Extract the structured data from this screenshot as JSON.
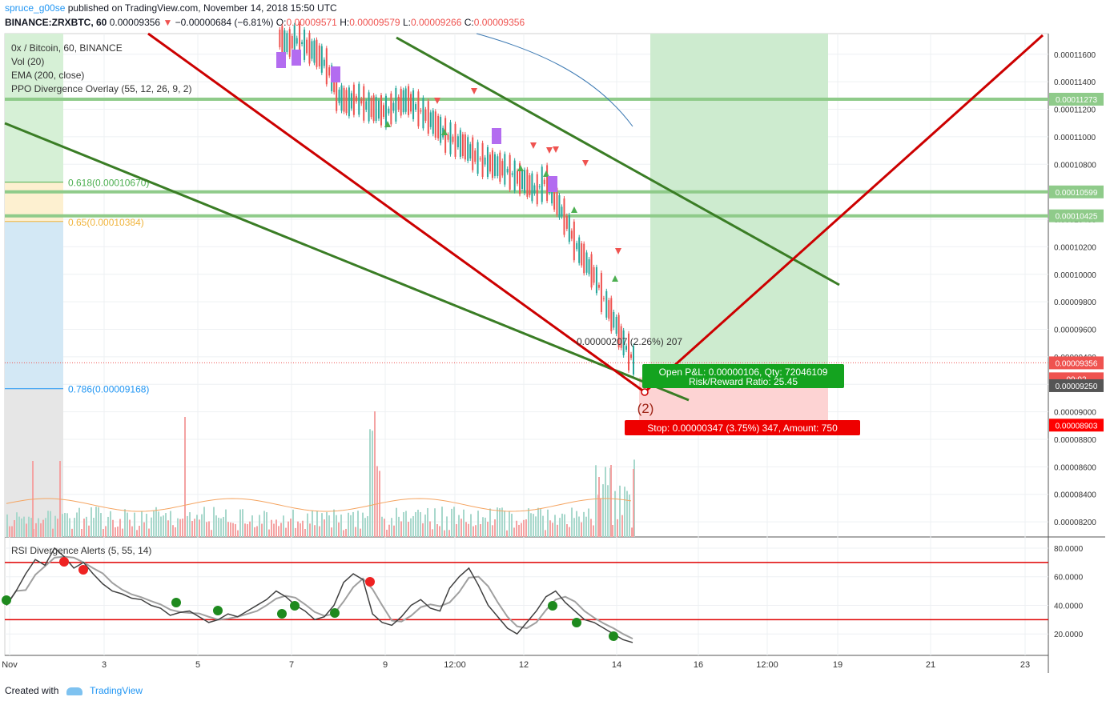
{
  "header": {
    "user": "spruce_g00se",
    "published": "published on TradingView.com, November 14, 2018 15:50 UTC",
    "symbol": "BINANCE:ZRXBTC, 60",
    "last": "0.00009356",
    "arrow": "▼",
    "change": "−0.00000684 (−6.81%)",
    "o_label": "O:",
    "o": "0.00009571",
    "h_label": "H:",
    "h": "0.00009579",
    "l_label": "L:",
    "l": "0.00009266",
    "c_label": "C:",
    "c": "0.00009356"
  },
  "legend": {
    "title": "0x / Bitcoin, 60, BINANCE",
    "vol": "Vol (20)",
    "ema": "EMA (200, close)",
    "ppo": "PPO Divergence Overlay (55, 12, 26, 9, 2)"
  },
  "rsi_title": "RSI Divergence Alerts (5, 55, 14)",
  "footer": {
    "created": "Created with",
    "brand": "TradingView"
  },
  "colors": {
    "up": "#26a69a",
    "down": "#ef5350",
    "long_target": "#cdebcf",
    "long_stop": "#fdd3d3",
    "trend_green": "#3a7d25",
    "trend_red": "#cc0000",
    "hline": "#8fcb8a"
  },
  "chart_data": {
    "type": "candlestick",
    "price_axis": {
      "ticks": [
        "0.00011600",
        "0.00011400",
        "0.00011200",
        "0.00011000",
        "0.00010800",
        "0.00010600",
        "0.00010400",
        "0.00010200",
        "0.00010000",
        "0.00009800",
        "0.00009600",
        "0.00009400",
        "0.00009200",
        "0.00009000",
        "0.00008800",
        "0.00008600",
        "0.00008400",
        "0.00008200"
      ],
      "range": [
        8.09e-05,
        0.0001175
      ]
    },
    "time_axis": {
      "ticks": [
        "Nov",
        "3",
        "5",
        "7",
        "9",
        "12:00",
        "12",
        "14",
        "16",
        "12:00",
        "19",
        "21",
        "23"
      ]
    },
    "price_labels": [
      {
        "value": "0.00011273",
        "price": 0.00011273,
        "color": "#8fcb8a"
      },
      {
        "value": "0.00010599",
        "price": 0.00010599,
        "color": "#8fcb8a"
      },
      {
        "value": "0.00010425",
        "price": 0.00010425,
        "color": "#8fcb8a"
      },
      {
        "value": "0.00009356",
        "price": 9.356e-05,
        "color": "#ef5350"
      },
      {
        "value": "09:02",
        "price": 9.24e-05,
        "color": "#ef5350"
      },
      {
        "value": "0.00009250",
        "price": 9.19e-05,
        "color": "#555555"
      },
      {
        "value": "0.00008903",
        "price": 8.903e-05,
        "color": "#ff0000"
      }
    ],
    "fib_levels": [
      {
        "label": "0.618(0.00010670)",
        "price": 0.0001067,
        "color": "#4caf50"
      },
      {
        "label": "0.65(0.00010384)",
        "price": 0.00010384,
        "color": "#f0b43c"
      },
      {
        "label": "0.786(0.00009168)",
        "price": 9.168e-05,
        "color": "#2196f3"
      }
    ],
    "horizontal_levels": [
      0.00011273,
      0.00010599,
      0.00010425
    ],
    "price_series": [
      0.0001172,
      0.0001168,
      0.000117,
      0.0001165,
      0.000116,
      0.000115,
      0.000113,
      0.0001125,
      0.0001128,
      0.0001122,
      0.000112,
      0.0001118,
      0.0001124,
      0.0001127,
      0.0001121,
      0.0001115,
      0.0001108,
      0.00011,
      0.0001097,
      0.0001092,
      0.0001085,
      0.0001082,
      0.0001079,
      0.0001076,
      0.0001071,
      0.0001067,
      0.0001061,
      0.0001068,
      0.0001055,
      0.000104,
      0.0001022,
      0.000101,
      9.98e-05,
      9.8e-05,
      9.65e-05,
      9.48e-05,
      9.36e-05
    ],
    "long_position": {
      "pnl_text": "Open P&L: 0.00000106, Qty: 72046109",
      "rr_text": "Risk/Reward Ratio: 25.45",
      "stop_text": "Stop: 0.00000347 (3.75%) 347, Amount: 750",
      "target_text": "0.00000207 (2.26%) 207",
      "wave_label": "(2)"
    },
    "rsi": {
      "ticks": [
        "80.0000",
        "60.0000",
        "40.0000",
        "20.0000"
      ],
      "levels": [
        70,
        30
      ],
      "series": [
        40,
        50,
        62,
        72,
        68,
        80,
        74,
        66,
        70,
        62,
        55,
        50,
        48,
        45,
        44,
        40,
        38,
        33,
        35,
        36,
        32,
        28,
        30,
        34,
        32,
        36,
        40,
        44,
        50,
        46,
        40,
        36,
        30,
        32,
        40,
        56,
        62,
        58,
        34,
        28,
        26,
        32,
        40,
        44,
        38,
        36,
        52,
        60,
        66,
        54,
        40,
        32,
        24,
        20,
        28,
        36,
        46,
        50,
        42,
        36,
        30,
        28,
        24,
        20,
        16,
        14
      ]
    }
  }
}
